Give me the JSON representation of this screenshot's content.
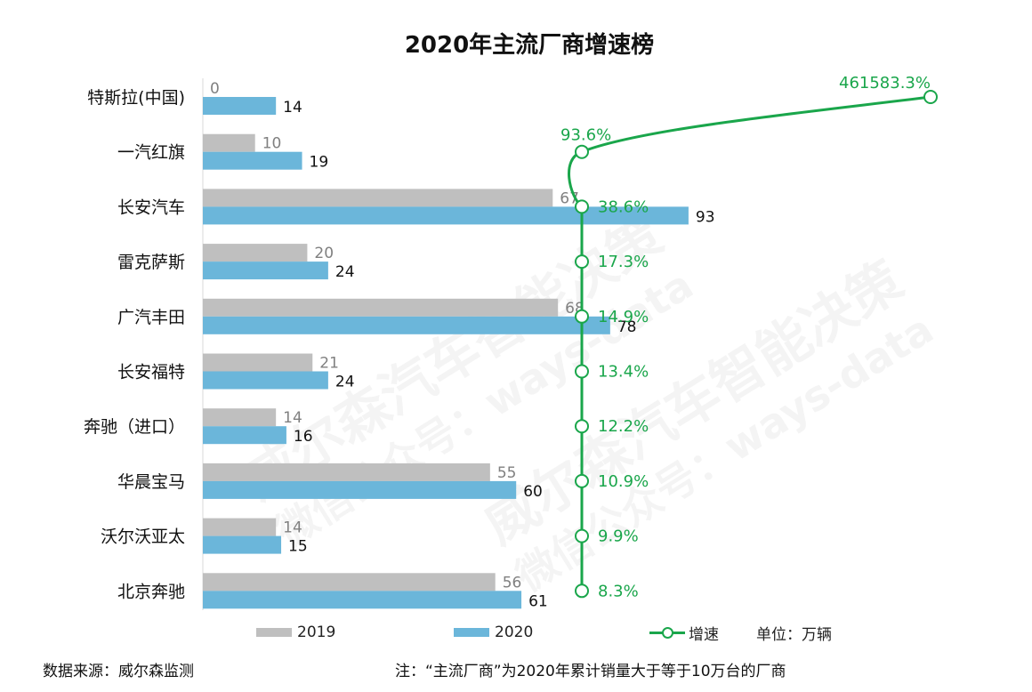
{
  "chart_data": {
    "type": "bar",
    "title": "2020年主流厂商增速榜",
    "categories": [
      "特斯拉(中国)",
      "一汽红旗",
      "长安汽车",
      "雷克萨斯",
      "广汽丰田",
      "长安福特",
      "奔驰（进口）",
      "华晨宝马",
      "沃尔沃亚太",
      "北京奔驰"
    ],
    "series": [
      {
        "name": "2019",
        "values": [
          0,
          10,
          67,
          20,
          68,
          21,
          14,
          55,
          14,
          56
        ],
        "color": "#bfbfbf"
      },
      {
        "name": "2020",
        "values": [
          14,
          19,
          93,
          24,
          78,
          24,
          16,
          60,
          15,
          61
        ],
        "color": "#6bb6da"
      }
    ],
    "growth": {
      "name": "增速",
      "values": [
        461583.3,
        93.6,
        38.6,
        17.3,
        14.9,
        13.4,
        12.2,
        10.9,
        9.9,
        8.3
      ],
      "labels": [
        "461583.3%",
        "93.6%",
        "38.6%",
        "17.3%",
        "14.9%",
        "13.4%",
        "12.2%",
        "10.9%",
        "9.9%",
        "8.3%"
      ],
      "color": "#1aa64b"
    },
    "unit_label": "单位：万辆",
    "legend_position": "bottom"
  },
  "watermark": {
    "lines": [
      "威尔森汽车智能决策",
      "微信公众号：ways-data"
    ]
  },
  "footer": {
    "source": "数据来源：威尔森监测",
    "note": "注：“主流厂商”为2020年累计销量大于等于10万台的厂商"
  }
}
